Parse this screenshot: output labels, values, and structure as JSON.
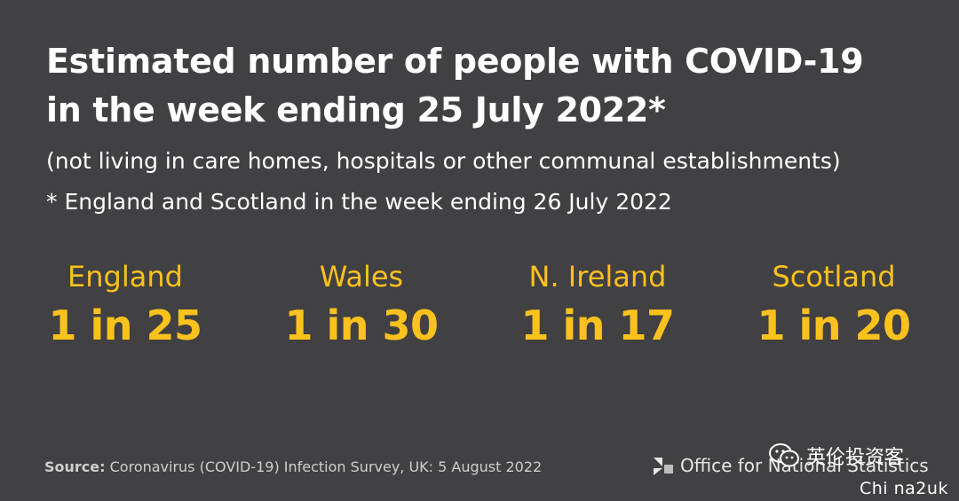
{
  "title": {
    "line1": "Estimated number of people with COVID-19",
    "line2": "in the week ending 25 July 2022*"
  },
  "subtitle": "(not living in care homes, hospitals or other communal establishments)",
  "footnote": "* England and Scotland in the week ending 26 July 2022",
  "stats": [
    {
      "region": "England",
      "value": "1 in 25"
    },
    {
      "region": "Wales",
      "value": "1 in 30"
    },
    {
      "region": "N. Ireland",
      "value": "1 in 17"
    },
    {
      "region": "Scotland",
      "value": "1 in 20"
    }
  ],
  "source": {
    "label": "Source:",
    "text": "Coronavirus (COVID-19) Infection Survey, UK: 5 August 2022"
  },
  "logo": {
    "text": "Office for National Statistics",
    "icon": "ons-logo-icon"
  },
  "watermark": {
    "name": "英伦投资客",
    "handle": "Chi na2uk",
    "icon": "wechat-icon"
  },
  "colors": {
    "background": "#414042",
    "accent": "#fbc21d",
    "text": "#ffffff"
  }
}
